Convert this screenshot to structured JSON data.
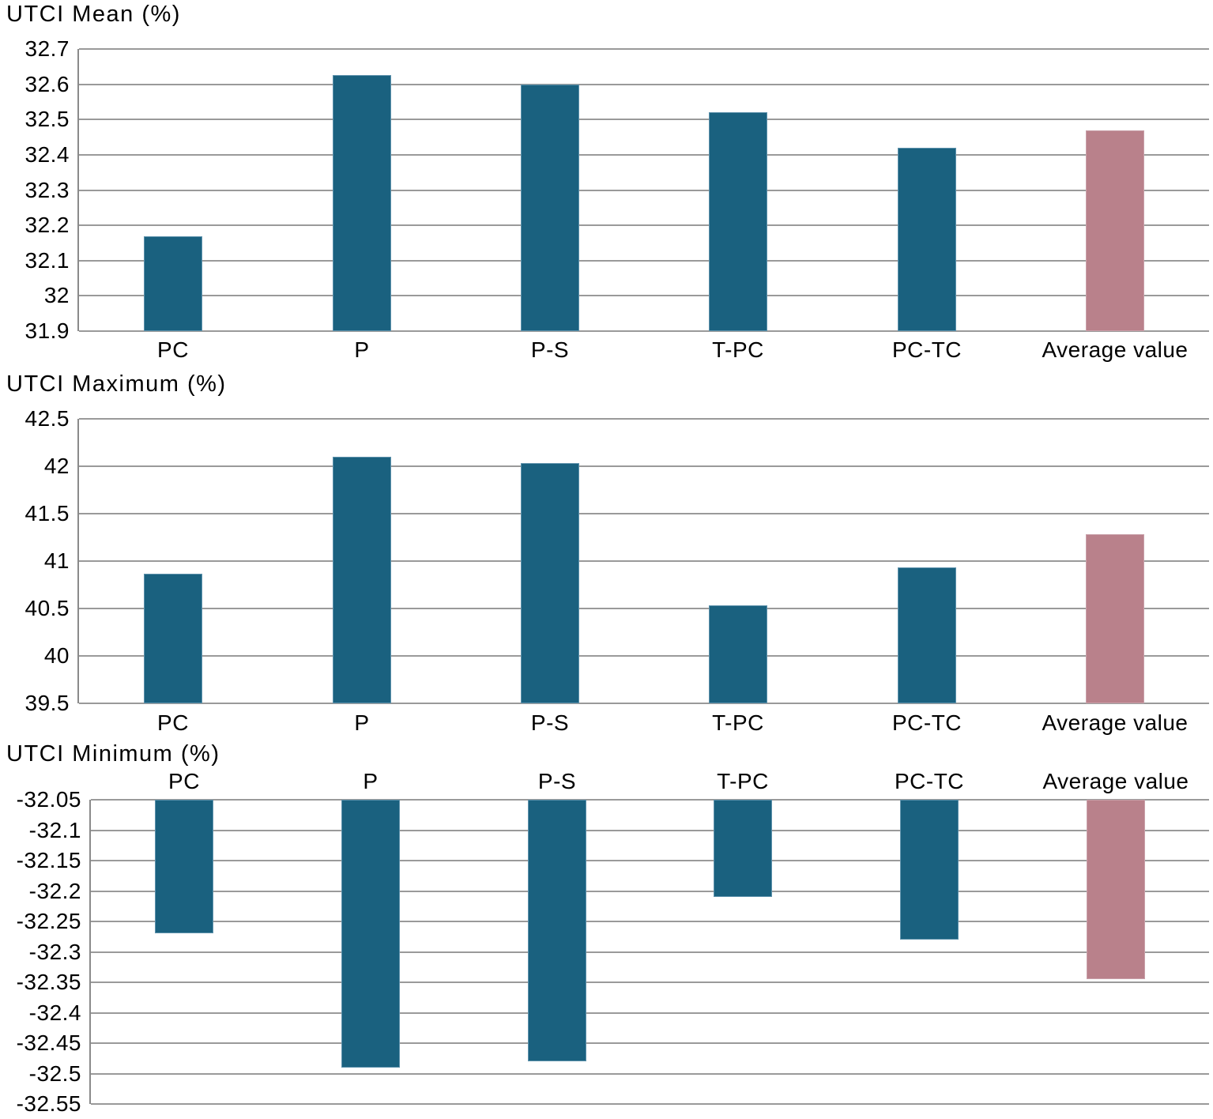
{
  "figure": {
    "background": "#ffffff"
  },
  "colors": {
    "bar": "#1A617F",
    "bar_border": "#5E92AC",
    "average_bar": "#B9818B",
    "average_bar_border": "#C9A0A9",
    "gridline": "#9A9A9A",
    "axis": "#8A8A8A",
    "text": "#000000"
  },
  "chart_data": [
    {
      "type": "bar",
      "title": "UTCI Mean (%)",
      "categories": [
        "PC",
        "P",
        "P-S",
        "T-PC",
        "PC-TC",
        "Average value"
      ],
      "values": [
        32.17,
        32.625,
        32.6,
        32.52,
        32.42,
        32.47
      ],
      "ylim": [
        31.9,
        32.7
      ],
      "baseline": 31.9,
      "grid": true,
      "legend": "none",
      "x_labels_position": "bottom",
      "highlight_category": "Average value",
      "ticks": [
        {
          "value": 32.7,
          "label": "32.7"
        },
        {
          "value": 32.6,
          "label": "32.6"
        },
        {
          "value": 32.5,
          "label": "32.5"
        },
        {
          "value": 32.4,
          "label": "32.4"
        },
        {
          "value": 32.3,
          "label": "32.3"
        },
        {
          "value": 32.2,
          "label": "32.2"
        },
        {
          "value": 32.1,
          "label": "32.1"
        },
        {
          "value": 32.0,
          "label": "32"
        },
        {
          "value": 31.9,
          "label": "31.9"
        }
      ]
    },
    {
      "type": "bar",
      "title": "UTCI Maximum (%)",
      "categories": [
        "PC",
        "P",
        "P-S",
        "T-PC",
        "PC-TC",
        "Average value"
      ],
      "values": [
        40.87,
        42.1,
        42.03,
        40.53,
        40.93,
        41.28
      ],
      "ylim": [
        39.5,
        42.5
      ],
      "baseline": 39.5,
      "grid": true,
      "legend": "none",
      "x_labels_position": "bottom",
      "highlight_category": "Average value",
      "ticks": [
        {
          "value": 42.5,
          "label": "42.5"
        },
        {
          "value": 42.0,
          "label": "42"
        },
        {
          "value": 41.5,
          "label": "41.5"
        },
        {
          "value": 41.0,
          "label": "41"
        },
        {
          "value": 40.5,
          "label": "40.5"
        },
        {
          "value": 40.0,
          "label": "40"
        },
        {
          "value": 39.5,
          "label": "39.5"
        }
      ]
    },
    {
      "type": "bar",
      "title": "UTCI Minimum (%)",
      "categories": [
        "PC",
        "P",
        "P-S",
        "T-PC",
        "PC-TC",
        "Average value"
      ],
      "values": [
        -32.27,
        -32.49,
        -32.48,
        -32.21,
        -32.28,
        -32.345
      ],
      "ylim": [
        -32.55,
        -32.05
      ],
      "baseline": -32.05,
      "grid": true,
      "legend": "none",
      "x_labels_position": "top",
      "highlight_category": "Average value",
      "ticks": [
        {
          "value": -32.05,
          "label": "-32.05"
        },
        {
          "value": -32.1,
          "label": "-32.1"
        },
        {
          "value": -32.15,
          "label": "-32.15"
        },
        {
          "value": -32.2,
          "label": "-32.2"
        },
        {
          "value": -32.25,
          "label": "-32.25"
        },
        {
          "value": -32.3,
          "label": "-32.3"
        },
        {
          "value": -32.35,
          "label": "-32.35"
        },
        {
          "value": -32.4,
          "label": "-32.4"
        },
        {
          "value": -32.45,
          "label": "-32.45"
        },
        {
          "value": -32.5,
          "label": "-32.5"
        },
        {
          "value": -32.55,
          "label": "-32.55"
        }
      ]
    }
  ]
}
